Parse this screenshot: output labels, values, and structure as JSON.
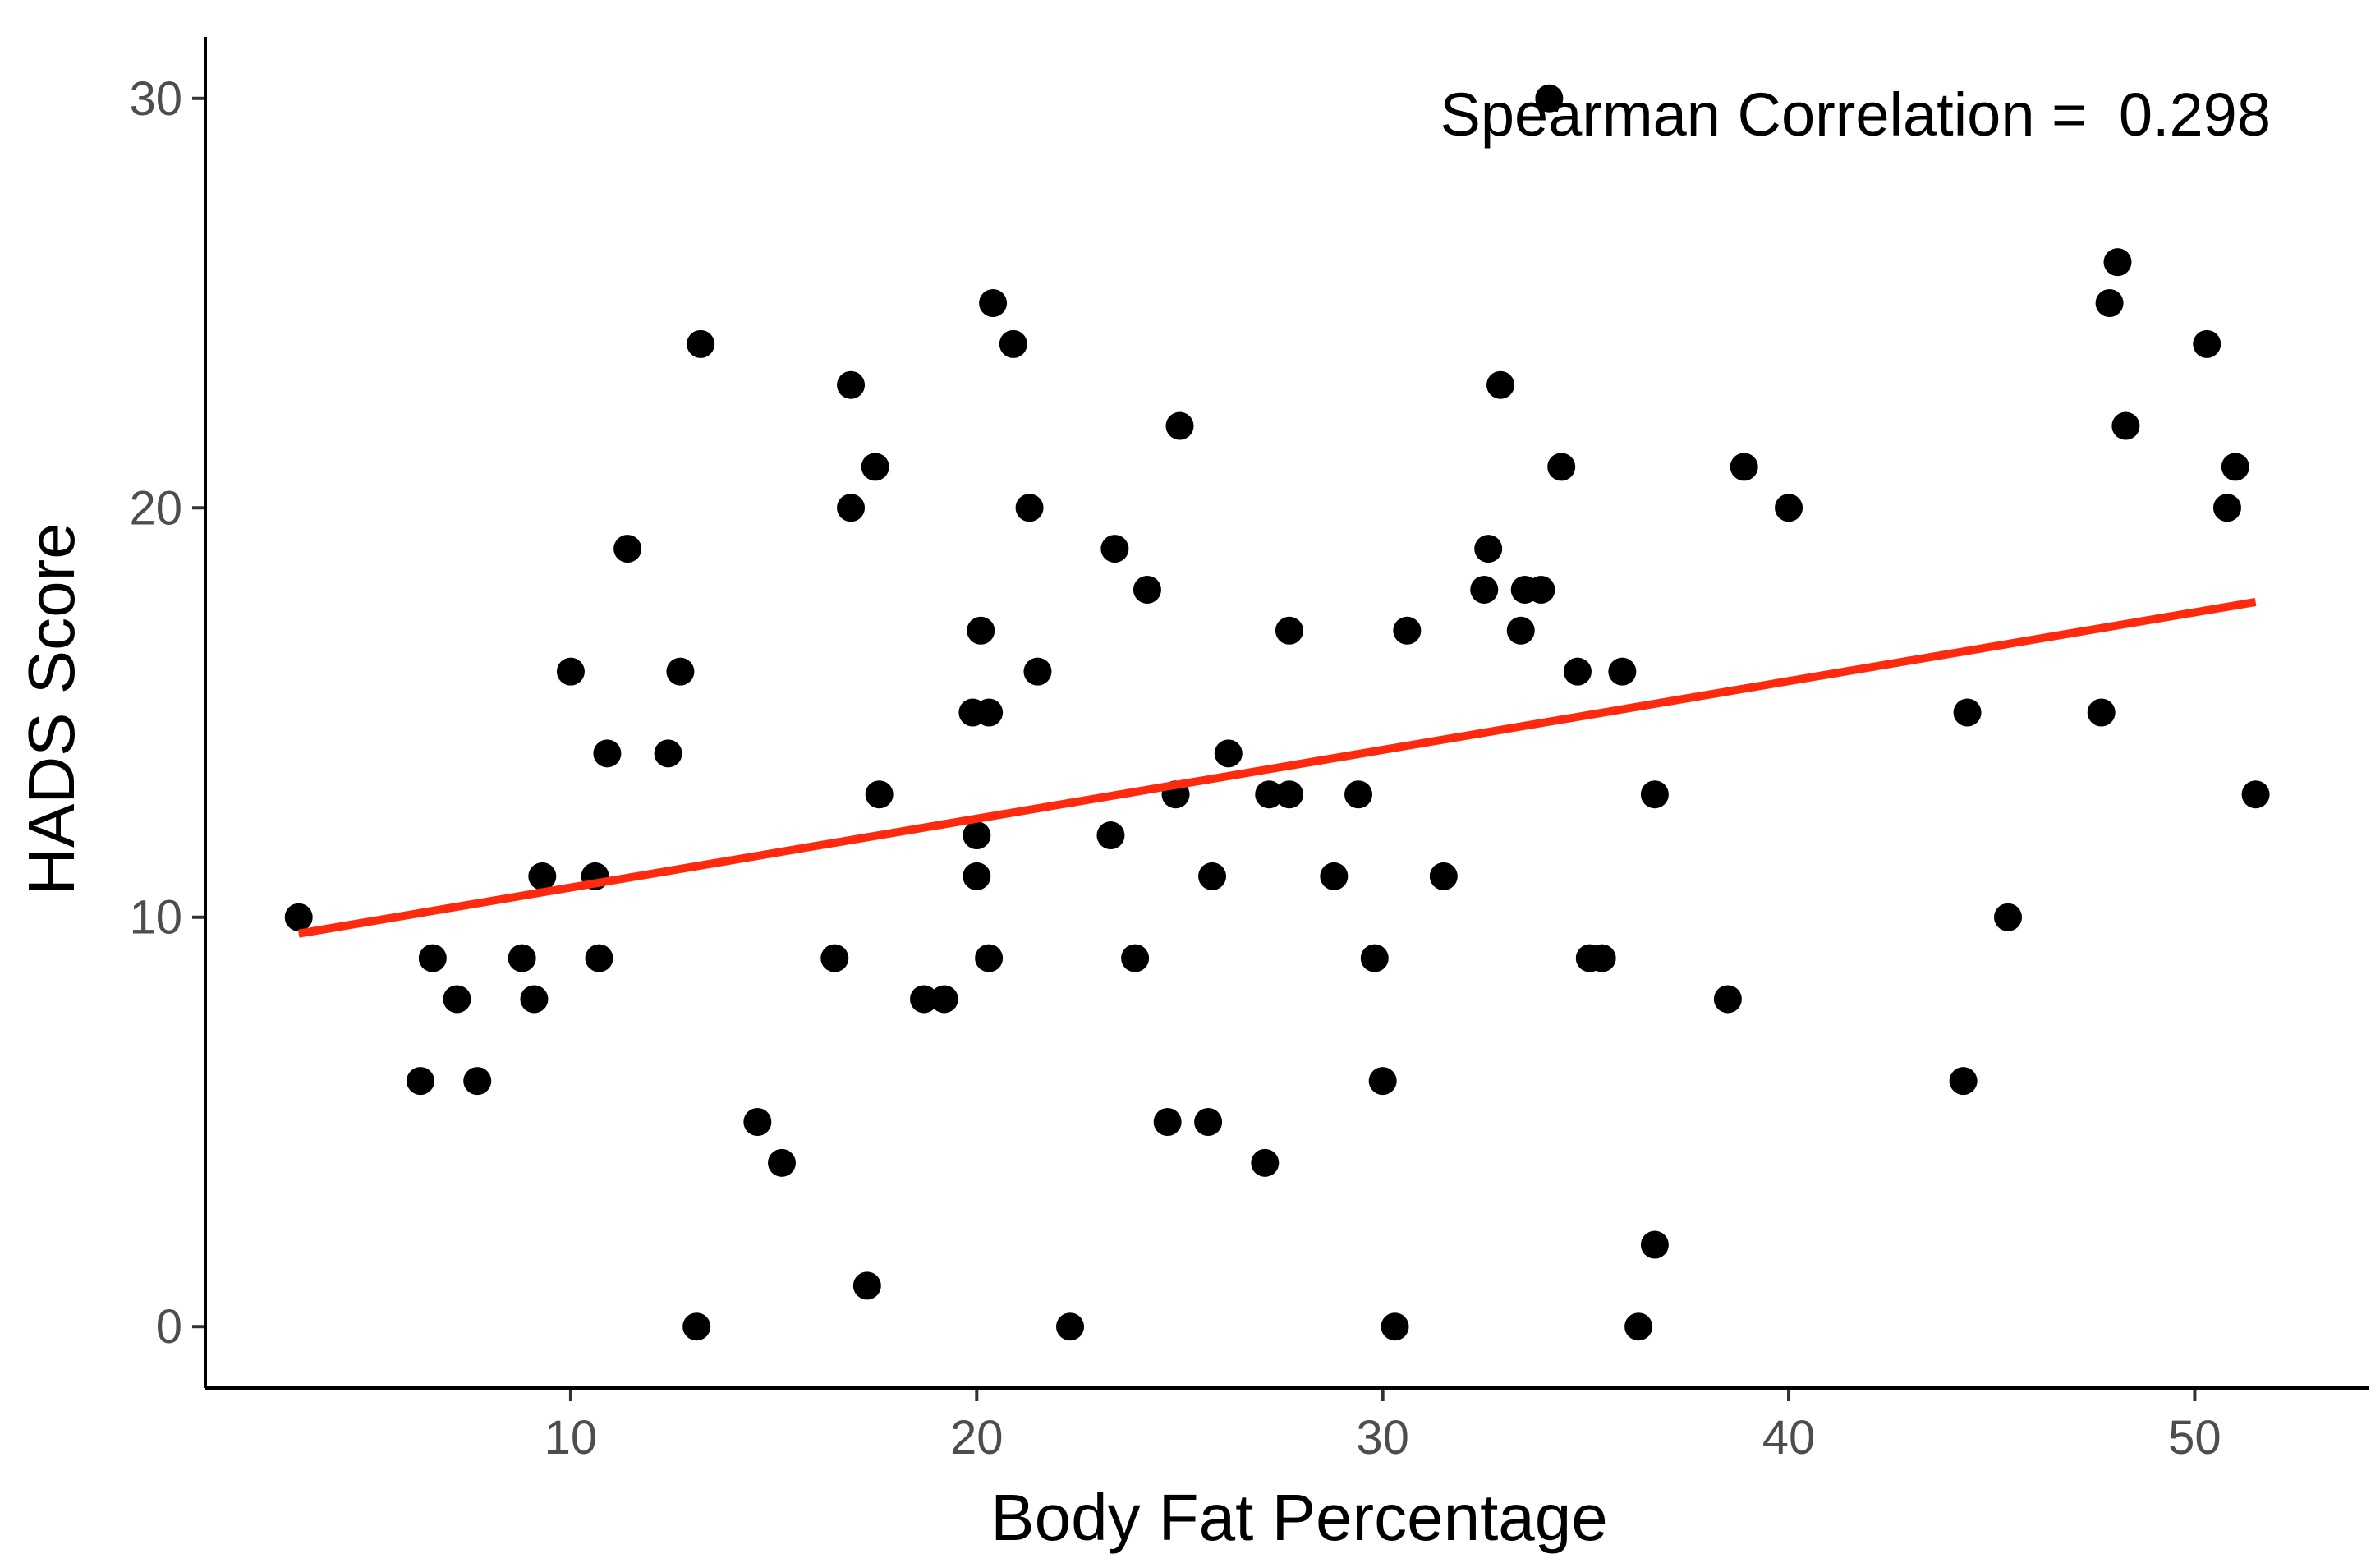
{
  "chart_data": {
    "type": "scatter",
    "title": "",
    "xlabel": "Body Fat Percentage",
    "ylabel": "HADS Score",
    "xlim": [
      1,
      54.3
    ],
    "ylim": [
      -1.5,
      31.5
    ],
    "xticks": [
      10,
      20,
      30,
      40,
      50
    ],
    "yticks": [
      0,
      10,
      20,
      30
    ],
    "annotation": {
      "label": "Spearman Correlation = ",
      "value": "0.298",
      "placement": "top-right"
    },
    "colors": {
      "points": "#000000",
      "fit_line": "#ff2a0d"
    },
    "fit_line": {
      "x": [
        3.3,
        51.5
      ],
      "y": [
        9.6,
        17.7
      ]
    },
    "points": [
      {
        "x": 3.3,
        "y": 10
      },
      {
        "x": 6.3,
        "y": 6
      },
      {
        "x": 6.6,
        "y": 9
      },
      {
        "x": 7.2,
        "y": 8
      },
      {
        "x": 7.7,
        "y": 6
      },
      {
        "x": 8.8,
        "y": 9
      },
      {
        "x": 9.1,
        "y": 8
      },
      {
        "x": 9.3,
        "y": 11
      },
      {
        "x": 10.0,
        "y": 16
      },
      {
        "x": 10.6,
        "y": 11
      },
      {
        "x": 10.7,
        "y": 9
      },
      {
        "x": 10.9,
        "y": 14
      },
      {
        "x": 11.4,
        "y": 19
      },
      {
        "x": 12.4,
        "y": 14
      },
      {
        "x": 12.7,
        "y": 16
      },
      {
        "x": 13.1,
        "y": 0
      },
      {
        "x": 13.2,
        "y": 24
      },
      {
        "x": 14.6,
        "y": 5
      },
      {
        "x": 15.2,
        "y": 4
      },
      {
        "x": 16.5,
        "y": 9
      },
      {
        "x": 16.9,
        "y": 23
      },
      {
        "x": 16.9,
        "y": 20
      },
      {
        "x": 17.3,
        "y": 1
      },
      {
        "x": 17.5,
        "y": 21
      },
      {
        "x": 17.6,
        "y": 13
      },
      {
        "x": 18.7,
        "y": 8
      },
      {
        "x": 19.2,
        "y": 8
      },
      {
        "x": 19.9,
        "y": 15
      },
      {
        "x": 20.0,
        "y": 12
      },
      {
        "x": 20.0,
        "y": 11
      },
      {
        "x": 20.1,
        "y": 17
      },
      {
        "x": 20.3,
        "y": 15
      },
      {
        "x": 20.3,
        "y": 9
      },
      {
        "x": 20.4,
        "y": 25
      },
      {
        "x": 20.9,
        "y": 24
      },
      {
        "x": 21.3,
        "y": 20
      },
      {
        "x": 21.5,
        "y": 16
      },
      {
        "x": 22.3,
        "y": 0
      },
      {
        "x": 23.3,
        "y": 12
      },
      {
        "x": 23.4,
        "y": 19
      },
      {
        "x": 23.9,
        "y": 9
      },
      {
        "x": 24.2,
        "y": 18
      },
      {
        "x": 24.7,
        "y": 5
      },
      {
        "x": 24.9,
        "y": 13
      },
      {
        "x": 25.0,
        "y": 22
      },
      {
        "x": 25.7,
        "y": 5
      },
      {
        "x": 25.8,
        "y": 11
      },
      {
        "x": 26.2,
        "y": 14
      },
      {
        "x": 27.1,
        "y": 4
      },
      {
        "x": 27.2,
        "y": 13
      },
      {
        "x": 27.7,
        "y": 17
      },
      {
        "x": 27.7,
        "y": 13
      },
      {
        "x": 28.8,
        "y": 11
      },
      {
        "x": 29.4,
        "y": 13
      },
      {
        "x": 29.8,
        "y": 9
      },
      {
        "x": 30.0,
        "y": 6
      },
      {
        "x": 30.3,
        "y": 0
      },
      {
        "x": 30.6,
        "y": 17
      },
      {
        "x": 31.5,
        "y": 11
      },
      {
        "x": 32.5,
        "y": 18
      },
      {
        "x": 32.6,
        "y": 19
      },
      {
        "x": 32.9,
        "y": 23
      },
      {
        "x": 33.4,
        "y": 17
      },
      {
        "x": 33.5,
        "y": 18
      },
      {
        "x": 33.9,
        "y": 18
      },
      {
        "x": 34.1,
        "y": 30
      },
      {
        "x": 34.4,
        "y": 21
      },
      {
        "x": 34.8,
        "y": 16
      },
      {
        "x": 35.1,
        "y": 9
      },
      {
        "x": 35.4,
        "y": 9
      },
      {
        "x": 35.9,
        "y": 16
      },
      {
        "x": 36.3,
        "y": 0
      },
      {
        "x": 36.7,
        "y": 13
      },
      {
        "x": 36.7,
        "y": 2
      },
      {
        "x": 38.5,
        "y": 8
      },
      {
        "x": 38.9,
        "y": 21
      },
      {
        "x": 40.0,
        "y": 20
      },
      {
        "x": 44.3,
        "y": 6
      },
      {
        "x": 44.4,
        "y": 15
      },
      {
        "x": 45.4,
        "y": 10
      },
      {
        "x": 47.7,
        "y": 15
      },
      {
        "x": 47.9,
        "y": 25
      },
      {
        "x": 48.1,
        "y": 26
      },
      {
        "x": 48.3,
        "y": 22
      },
      {
        "x": 50.3,
        "y": 24
      },
      {
        "x": 50.8,
        "y": 20
      },
      {
        "x": 51.0,
        "y": 21
      },
      {
        "x": 51.5,
        "y": 13
      }
    ]
  }
}
